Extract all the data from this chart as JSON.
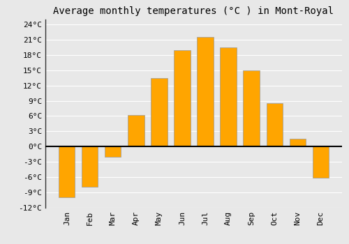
{
  "title": "Average monthly temperatures (°C ) in Mont-Royal",
  "months": [
    "Jan",
    "Feb",
    "Mar",
    "Apr",
    "May",
    "Jun",
    "Jul",
    "Aug",
    "Sep",
    "Oct",
    "Nov",
    "Dec"
  ],
  "values": [
    -10,
    -8,
    -2,
    6.2,
    13.5,
    19,
    21.5,
    19.5,
    15,
    8.5,
    1.5,
    -6.2
  ],
  "bar_color": "#FFA500",
  "bar_edge_color": "#999999",
  "background_color": "#e8e8e8",
  "ylim": [
    -12,
    25
  ],
  "yticks": [
    -12,
    -9,
    -6,
    -3,
    0,
    3,
    6,
    9,
    12,
    15,
    18,
    21,
    24
  ],
  "ytick_labels": [
    "-12°C",
    "-9°C",
    "-6°C",
    "-3°C",
    "0°C",
    "3°C",
    "6°C",
    "9°C",
    "12°C",
    "15°C",
    "18°C",
    "21°C",
    "24°C"
  ],
  "grid_color": "#ffffff",
  "zero_line_color": "#000000",
  "title_fontsize": 10,
  "tick_fontsize": 8,
  "font_family": "monospace"
}
